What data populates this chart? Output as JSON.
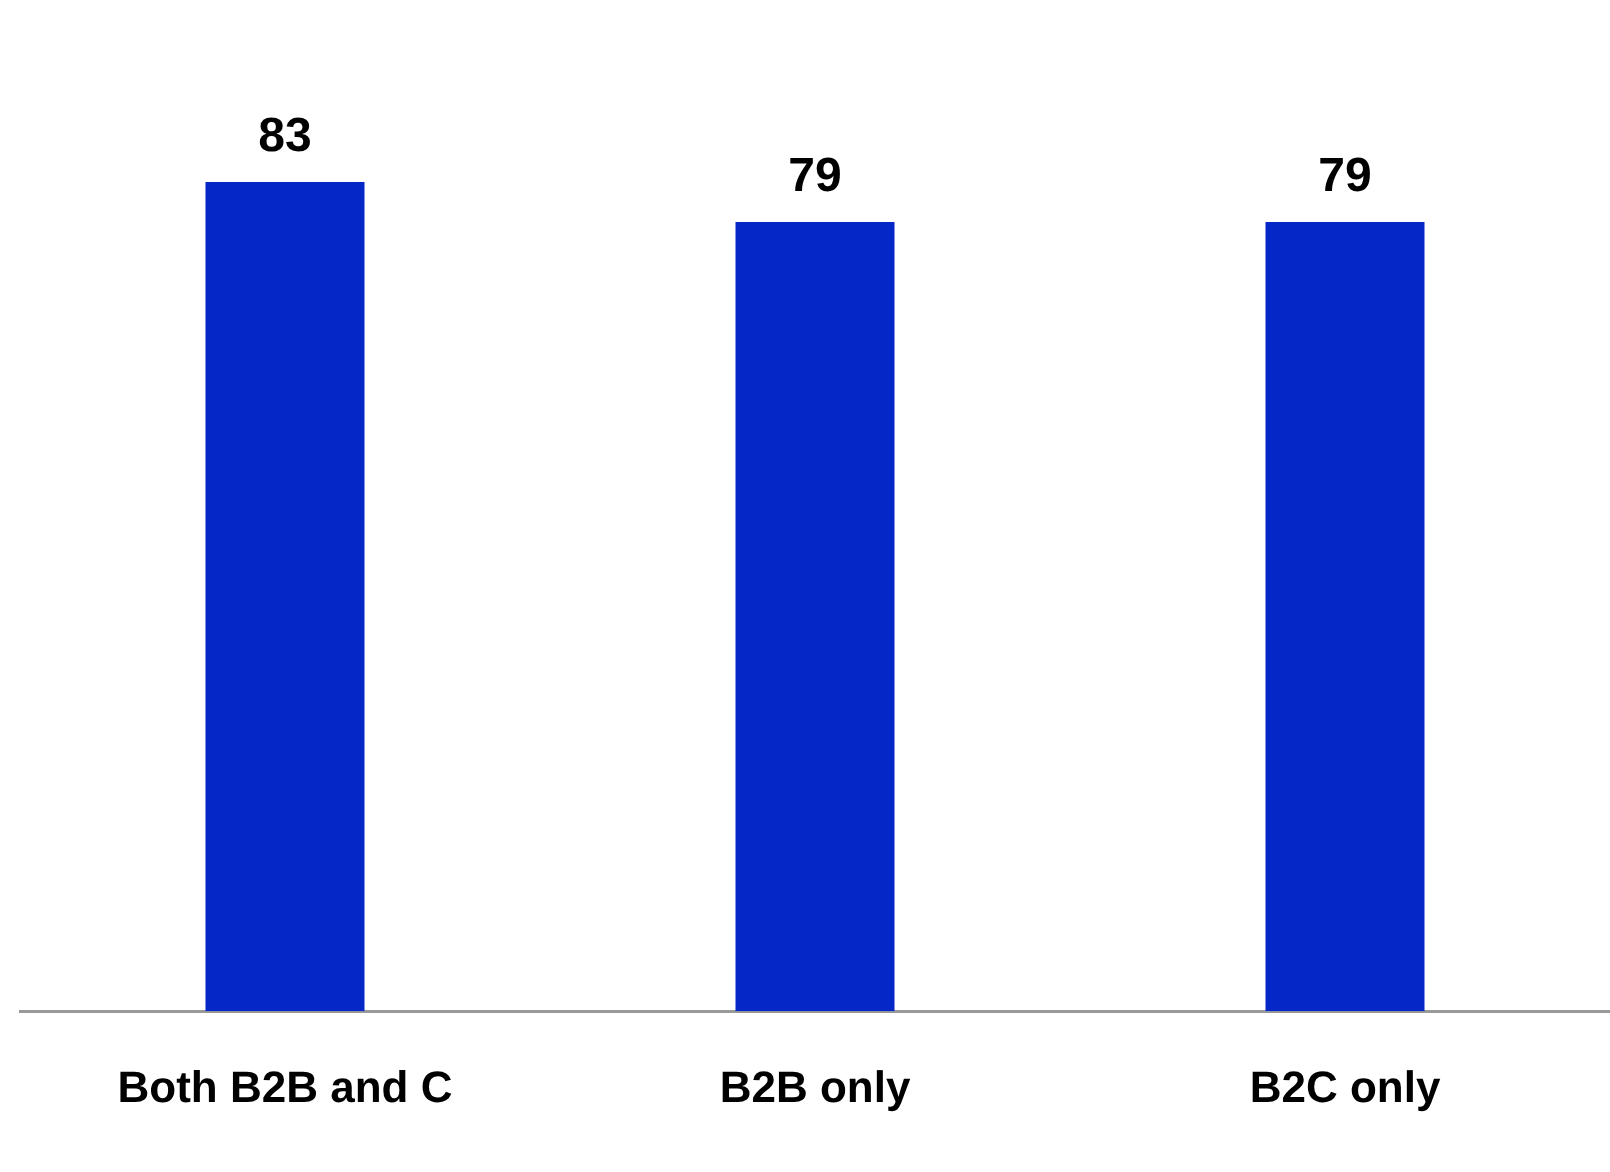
{
  "chart_data": {
    "type": "bar",
    "categories": [
      "Both B2B and C",
      "B2B only",
      "B2C only"
    ],
    "values": [
      83,
      79,
      79
    ],
    "color": "#0527c8",
    "data_labels": true,
    "grid": false,
    "legend": false,
    "tick_labels": "x"
  }
}
